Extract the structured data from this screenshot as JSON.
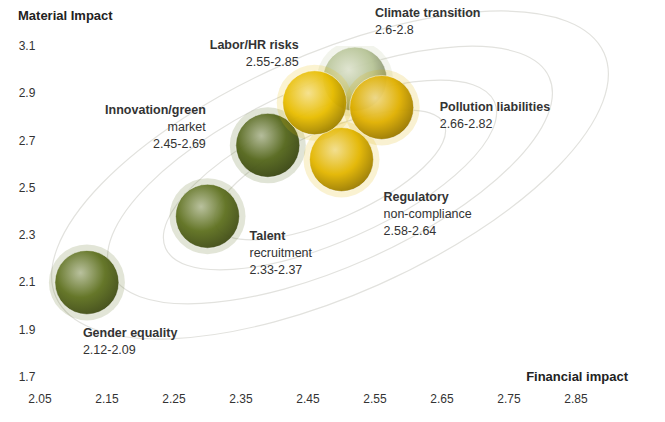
{
  "chart_data": {
    "type": "scatter",
    "x_label": "Financial impact",
    "y_label": "Material Impact",
    "labels": [
      [
        "Gender equality"
      ],
      [
        "Talent",
        "recruitment"
      ],
      [
        "Innovation/green",
        "market"
      ],
      [
        "Climate transition"
      ],
      [
        "Regulatory",
        "non-compliance"
      ],
      [
        "Labor/HR risks"
      ],
      [
        "Pollution liabilities"
      ]
    ],
    "range_labels": [
      "2.12-2.09",
      "2.33-2.37",
      "2.45-2.69",
      "2.6-2.8",
      "2.58-2.64",
      "2.55-2.85",
      "2.66-2.82"
    ],
    "x": [
      2.12,
      2.3,
      2.39,
      2.52,
      2.5,
      2.46,
      2.56
    ],
    "values": [
      2.1,
      2.38,
      2.68,
      2.96,
      2.62,
      2.86,
      2.84
    ],
    "colors": [
      "#5f7120",
      "#5f7120",
      "#55671c",
      "#b7c497",
      "#e3b600",
      "#e8bd00",
      "#e0b000"
    ],
    "xlim": [
      2.05,
      2.85
    ],
    "ylim": [
      1.7,
      3.1
    ],
    "xticks": [
      2.05,
      2.15,
      2.25,
      2.35,
      2.45,
      2.55,
      2.65,
      2.75,
      2.85
    ],
    "yticks": [
      1.7,
      1.9,
      2.1,
      2.3,
      2.5,
      2.7,
      2.9,
      3.1
    ],
    "grid": false
  }
}
